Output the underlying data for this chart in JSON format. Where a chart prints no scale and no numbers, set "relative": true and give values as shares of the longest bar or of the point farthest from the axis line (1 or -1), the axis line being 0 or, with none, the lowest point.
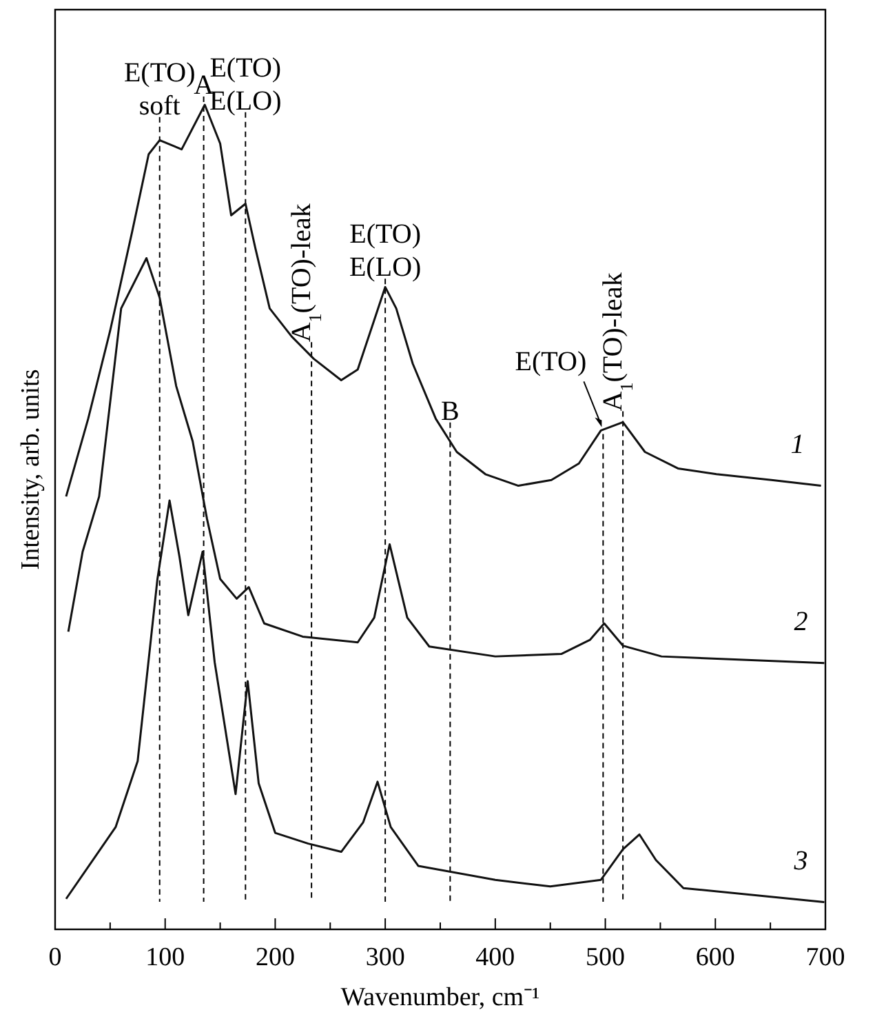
{
  "chart_data": {
    "type": "line",
    "relative": true,
    "xlabel": "Wavenumber, cm⁻¹",
    "ylabel": "Intensity, arb. units",
    "xlim": [
      0,
      700
    ],
    "xticks": [
      0,
      {
        "value": 50,
        "label": null
      },
      100,
      {
        "value": 150,
        "label": null
      },
      200,
      {
        "value": 250,
        "label": null
      },
      300,
      {
        "value": 350,
        "label": null
      },
      400,
      {
        "value": 450,
        "label": null
      },
      500,
      {
        "value": 550,
        "label": null
      },
      600,
      {
        "value": 650,
        "label": null
      },
      700
    ],
    "tick_labels": "x",
    "grid": false,
    "marker": "none",
    "line_style": "solid",
    "series": [
      {
        "name": "1",
        "color": "#111111",
        "x": [
          10,
          30,
          50,
          70,
          85,
          95,
          115,
          136,
          150,
          160,
          173,
          182,
          195,
          215,
          235,
          260,
          275,
          290,
          300,
          310,
          325,
          346,
          365,
          391,
          421,
          451,
          476,
          496,
          516,
          536,
          566,
          601,
          651,
          696
        ],
        "values": [
          0.525,
          0.619,
          0.726,
          0.846,
          0.94,
          0.957,
          0.946,
          1.0,
          0.953,
          0.866,
          0.88,
          0.826,
          0.753,
          0.719,
          0.692,
          0.666,
          0.679,
          0.739,
          0.779,
          0.753,
          0.686,
          0.619,
          0.579,
          0.552,
          0.538,
          0.545,
          0.565,
          0.605,
          0.615,
          0.579,
          0.559,
          0.552,
          0.545,
          0.538
        ]
      },
      {
        "name": "2",
        "color": "#111111",
        "x": [
          12,
          25,
          40,
          60,
          83,
          95,
          110,
          125,
          138,
          150,
          165,
          176,
          190,
          225,
          275,
          290,
          304,
          320,
          340,
          400,
          460,
          486,
          499,
          516,
          551,
          699
        ],
        "values": [
          0.361,
          0.458,
          0.525,
          0.753,
          0.814,
          0.766,
          0.659,
          0.592,
          0.498,
          0.425,
          0.401,
          0.415,
          0.371,
          0.355,
          0.348,
          0.378,
          0.467,
          0.378,
          0.343,
          0.331,
          0.334,
          0.351,
          0.371,
          0.344,
          0.331,
          0.323
        ]
      },
      {
        "name": "3",
        "color": "#111111",
        "x": [
          10,
          55,
          75,
          93,
          104,
          113,
          121,
          134,
          145,
          164,
          175,
          185,
          200,
          230,
          260,
          280,
          293,
          305,
          330,
          400,
          450,
          496,
          516,
          531,
          546,
          571,
          699
        ],
        "values": [
          0.037,
          0.124,
          0.204,
          0.425,
          0.52,
          0.452,
          0.381,
          0.458,
          0.324,
          0.164,
          0.301,
          0.177,
          0.117,
          0.104,
          0.094,
          0.13,
          0.179,
          0.124,
          0.077,
          0.06,
          0.052,
          0.06,
          0.097,
          0.115,
          0.084,
          0.05,
          0.033
        ]
      }
    ],
    "ref_lines": [
      {
        "axis": "x",
        "value": 95,
        "label": "E(TO)\nsoft",
        "line_style": "dashed"
      },
      {
        "axis": "x",
        "value": 135,
        "label": "A",
        "line_style": "dashed"
      },
      {
        "axis": "x",
        "value": 173,
        "label": "E(TO)\nE(LO)",
        "line_style": "dashed"
      },
      {
        "axis": "x",
        "value": 233,
        "label": "A$_{1}$(TO)-leak",
        "line_style": "dashed"
      },
      {
        "axis": "x",
        "value": 300,
        "label": "E(TO)\nE(LO)",
        "line_style": "dashed"
      },
      {
        "axis": "x",
        "value": 359,
        "label": "B",
        "line_style": "dashed"
      },
      {
        "axis": "x",
        "value": 498,
        "label": "E(TO)",
        "line_style": "dashed"
      },
      {
        "axis": "x",
        "value": 516,
        "label": "A$_{1}$(TO)-leak",
        "line_style": "dashed"
      }
    ]
  }
}
